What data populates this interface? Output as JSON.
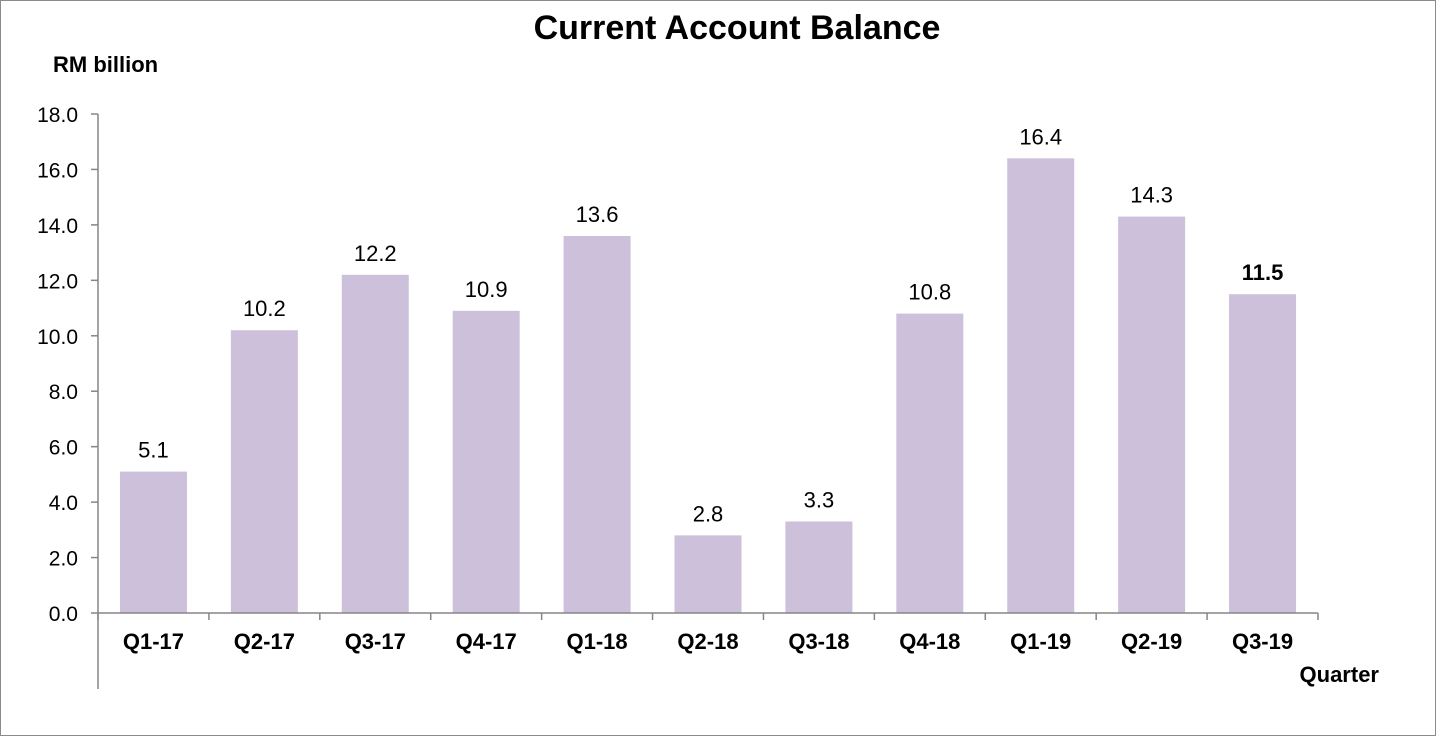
{
  "chart_data": {
    "type": "bar",
    "title": "Current Account Balance",
    "ylabel": "RM billion",
    "xlabel": "Quarter",
    "categories": [
      "Q1-17",
      "Q2-17",
      "Q3-17",
      "Q4-17",
      "Q1-18",
      "Q2-18",
      "Q3-18",
      "Q4-18",
      "Q1-19",
      "Q2-19",
      "Q3-19"
    ],
    "values": [
      5.1,
      10.2,
      12.2,
      10.9,
      13.6,
      2.8,
      3.3,
      10.8,
      16.4,
      14.3,
      11.5
    ],
    "value_labels": [
      "5.1",
      "10.2",
      "12.2",
      "10.9",
      "13.6",
      "2.8",
      "3.3",
      "10.8",
      "16.4",
      "14.3",
      "11.5"
    ],
    "highlighted_label": "Q3-19",
    "ylim": [
      0,
      18
    ],
    "yticks": [
      "0.0",
      "2.0",
      "4.0",
      "6.0",
      "8.0",
      "10.0",
      "12.0",
      "14.0",
      "16.0",
      "18.0"
    ],
    "grid": false,
    "legend": "none",
    "bar_color": "#ccc0da",
    "axis_color": "#868686"
  }
}
